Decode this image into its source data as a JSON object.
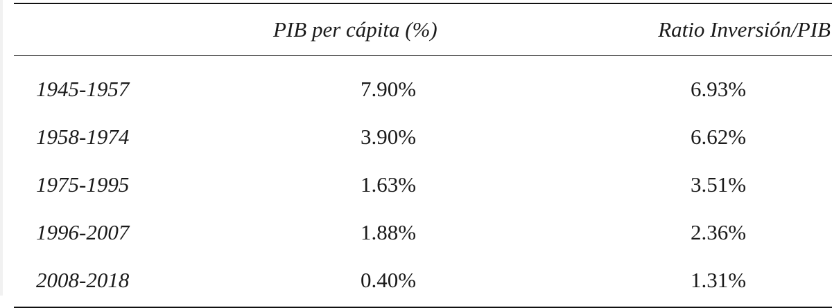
{
  "table": {
    "headers": [
      "",
      "PIB per cápita (%)",
      "Ratio Inversión/PIB"
    ],
    "rows": [
      {
        "period": "1945-1957",
        "pib": "7.90%",
        "ratio": "6.93%"
      },
      {
        "period": "1958-1974",
        "pib": "3.90%",
        "ratio": "6.62%"
      },
      {
        "period": "1975-1995",
        "pib": "1.63%",
        "ratio": "3.51%"
      },
      {
        "period": "1996-2007",
        "pib": "1.88%",
        "ratio": "2.36%"
      },
      {
        "period": "2008-2018",
        "pib": "0.40%",
        "ratio": "1.31%"
      }
    ]
  }
}
